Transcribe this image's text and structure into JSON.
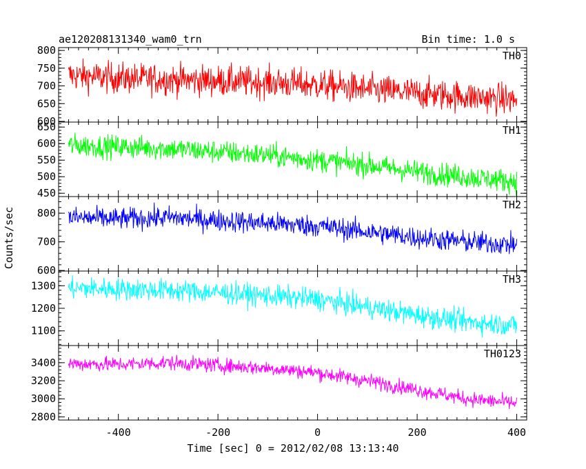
{
  "header": {
    "title": "ae120208131340_wam0_trn",
    "bin_time": "Bin time: 1.0 s"
  },
  "axes": {
    "xlabel": "Time [sec] 0 = 2012/02/08 13:13:40",
    "ylabel": "Counts/sec"
  },
  "chart_data": [
    {
      "type": "line",
      "name": "TH0",
      "color": "#ff0000",
      "x_range": [
        -520,
        420
      ],
      "xlim": [
        -520,
        420
      ],
      "ylim": [
        598,
        808
      ],
      "yticks": [
        600,
        650,
        700,
        750,
        800
      ],
      "x": [
        -500,
        -400,
        -300,
        -200,
        -100,
        0,
        100,
        200,
        300,
        400
      ],
      "values": [
        730,
        722,
        718,
        714,
        710,
        703,
        690,
        679,
        670,
        660
      ],
      "noise": 40
    },
    {
      "type": "line",
      "name": "TH1",
      "color": "#00ff00",
      "x_range": [
        -520,
        420
      ],
      "xlim": [
        -520,
        420
      ],
      "ylim": [
        440,
        665
      ],
      "yticks": [
        450,
        500,
        550,
        600,
        650
      ],
      "x": [
        -500,
        -400,
        -300,
        -200,
        -100,
        0,
        100,
        200,
        300,
        400
      ],
      "values": [
        595,
        590,
        585,
        575,
        565,
        550,
        535,
        515,
        500,
        485
      ],
      "noise": 32
    },
    {
      "type": "line",
      "name": "TH2",
      "color": "#0000ff",
      "x_range": [
        -520,
        420
      ],
      "xlim": [
        -520,
        420
      ],
      "ylim": [
        598,
        858
      ],
      "yticks": [
        600,
        700,
        800
      ],
      "x": [
        -500,
        -400,
        -300,
        -200,
        -100,
        0,
        100,
        200,
        300,
        400
      ],
      "values": [
        785,
        780,
        785,
        775,
        765,
        755,
        735,
        715,
        700,
        690
      ],
      "noise": 35
    },
    {
      "type": "line",
      "name": "TH3",
      "color": "#00ffff",
      "x_range": [
        -520,
        420
      ],
      "xlim": [
        -520,
        420
      ],
      "ylim": [
        1035,
        1365
      ],
      "yticks": [
        1100,
        1200,
        1300
      ],
      "x": [
        -500,
        -400,
        -300,
        -200,
        -100,
        0,
        100,
        200,
        300,
        400
      ],
      "values": [
        1290,
        1285,
        1280,
        1270,
        1255,
        1240,
        1205,
        1170,
        1140,
        1125
      ],
      "noise": 45
    },
    {
      "type": "line",
      "name": "TH0123",
      "color": "#ff00ff",
      "x_range": [
        -520,
        420
      ],
      "xlim": [
        -520,
        420
      ],
      "ylim": [
        2765,
        3590
      ],
      "yticks": [
        2800,
        3000,
        3200,
        3400
      ],
      "x": [
        -500,
        -400,
        -300,
        -200,
        -100,
        0,
        100,
        200,
        300,
        400
      ],
      "values": [
        3390,
        3380,
        3400,
        3370,
        3340,
        3290,
        3200,
        3100,
        3000,
        2950
      ],
      "noise": 75
    }
  ],
  "xticks": [
    -400,
    -200,
    0,
    200,
    400
  ]
}
